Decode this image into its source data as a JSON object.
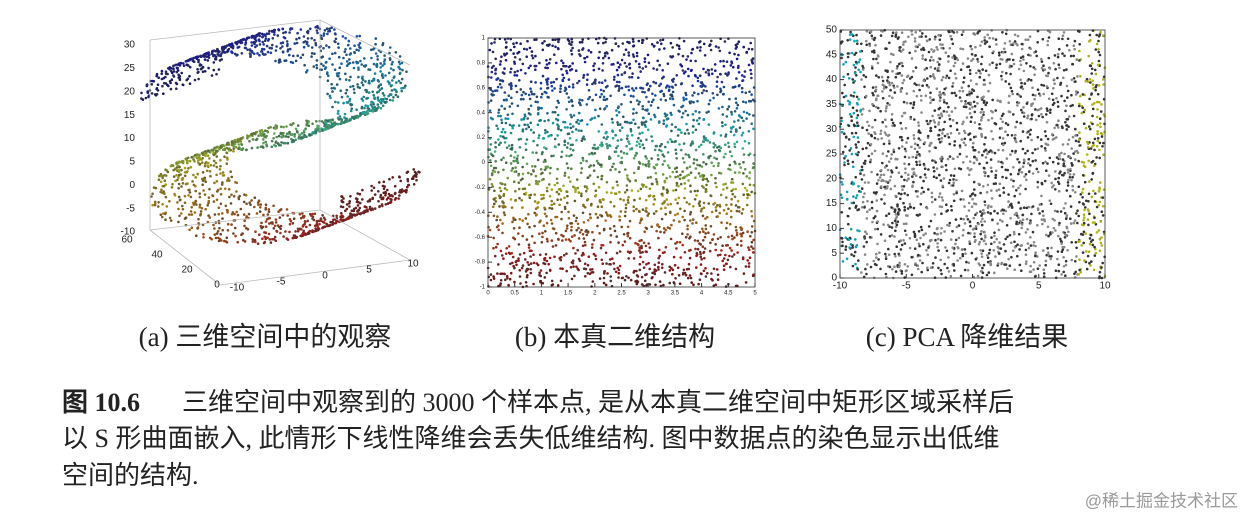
{
  "figure": {
    "panels": [
      {
        "caption": "(a) 三维空间中的观察",
        "zticks": [
          -10,
          -5,
          0,
          5,
          10,
          15,
          20,
          25,
          30
        ],
        "yticks": [
          0,
          20,
          40,
          60
        ],
        "xticks": [
          -10,
          -5,
          0,
          5,
          10
        ]
      },
      {
        "caption": "(b) 本真二维结构",
        "xticks": [
          0,
          0.5,
          1,
          1.5,
          2,
          2.5,
          3,
          3.5,
          4,
          4.5,
          5
        ],
        "yticks": [
          -1,
          -0.8,
          -0.6,
          -0.4,
          -0.2,
          0,
          0.2,
          0.4,
          0.6,
          0.8,
          1
        ]
      },
      {
        "caption": "(c) PCA 降维结果",
        "xticks": [
          -10,
          -5,
          0,
          5,
          10
        ],
        "yticks": [
          0,
          5,
          10,
          15,
          20,
          25,
          30,
          35,
          40,
          45,
          50
        ]
      }
    ],
    "caption": {
      "label": "图 10.6",
      "lines": [
        "三维空间中观察到的 3000 个样本点, 是从本真二维空间中矩形区域采样后",
        "以 S 形曲面嵌入, 此情形下线性降维会丢失低维结构. 图中数据点的染色显示出低维",
        "空间的结构."
      ]
    }
  },
  "watermark": "@稀土掘金技术社区"
}
